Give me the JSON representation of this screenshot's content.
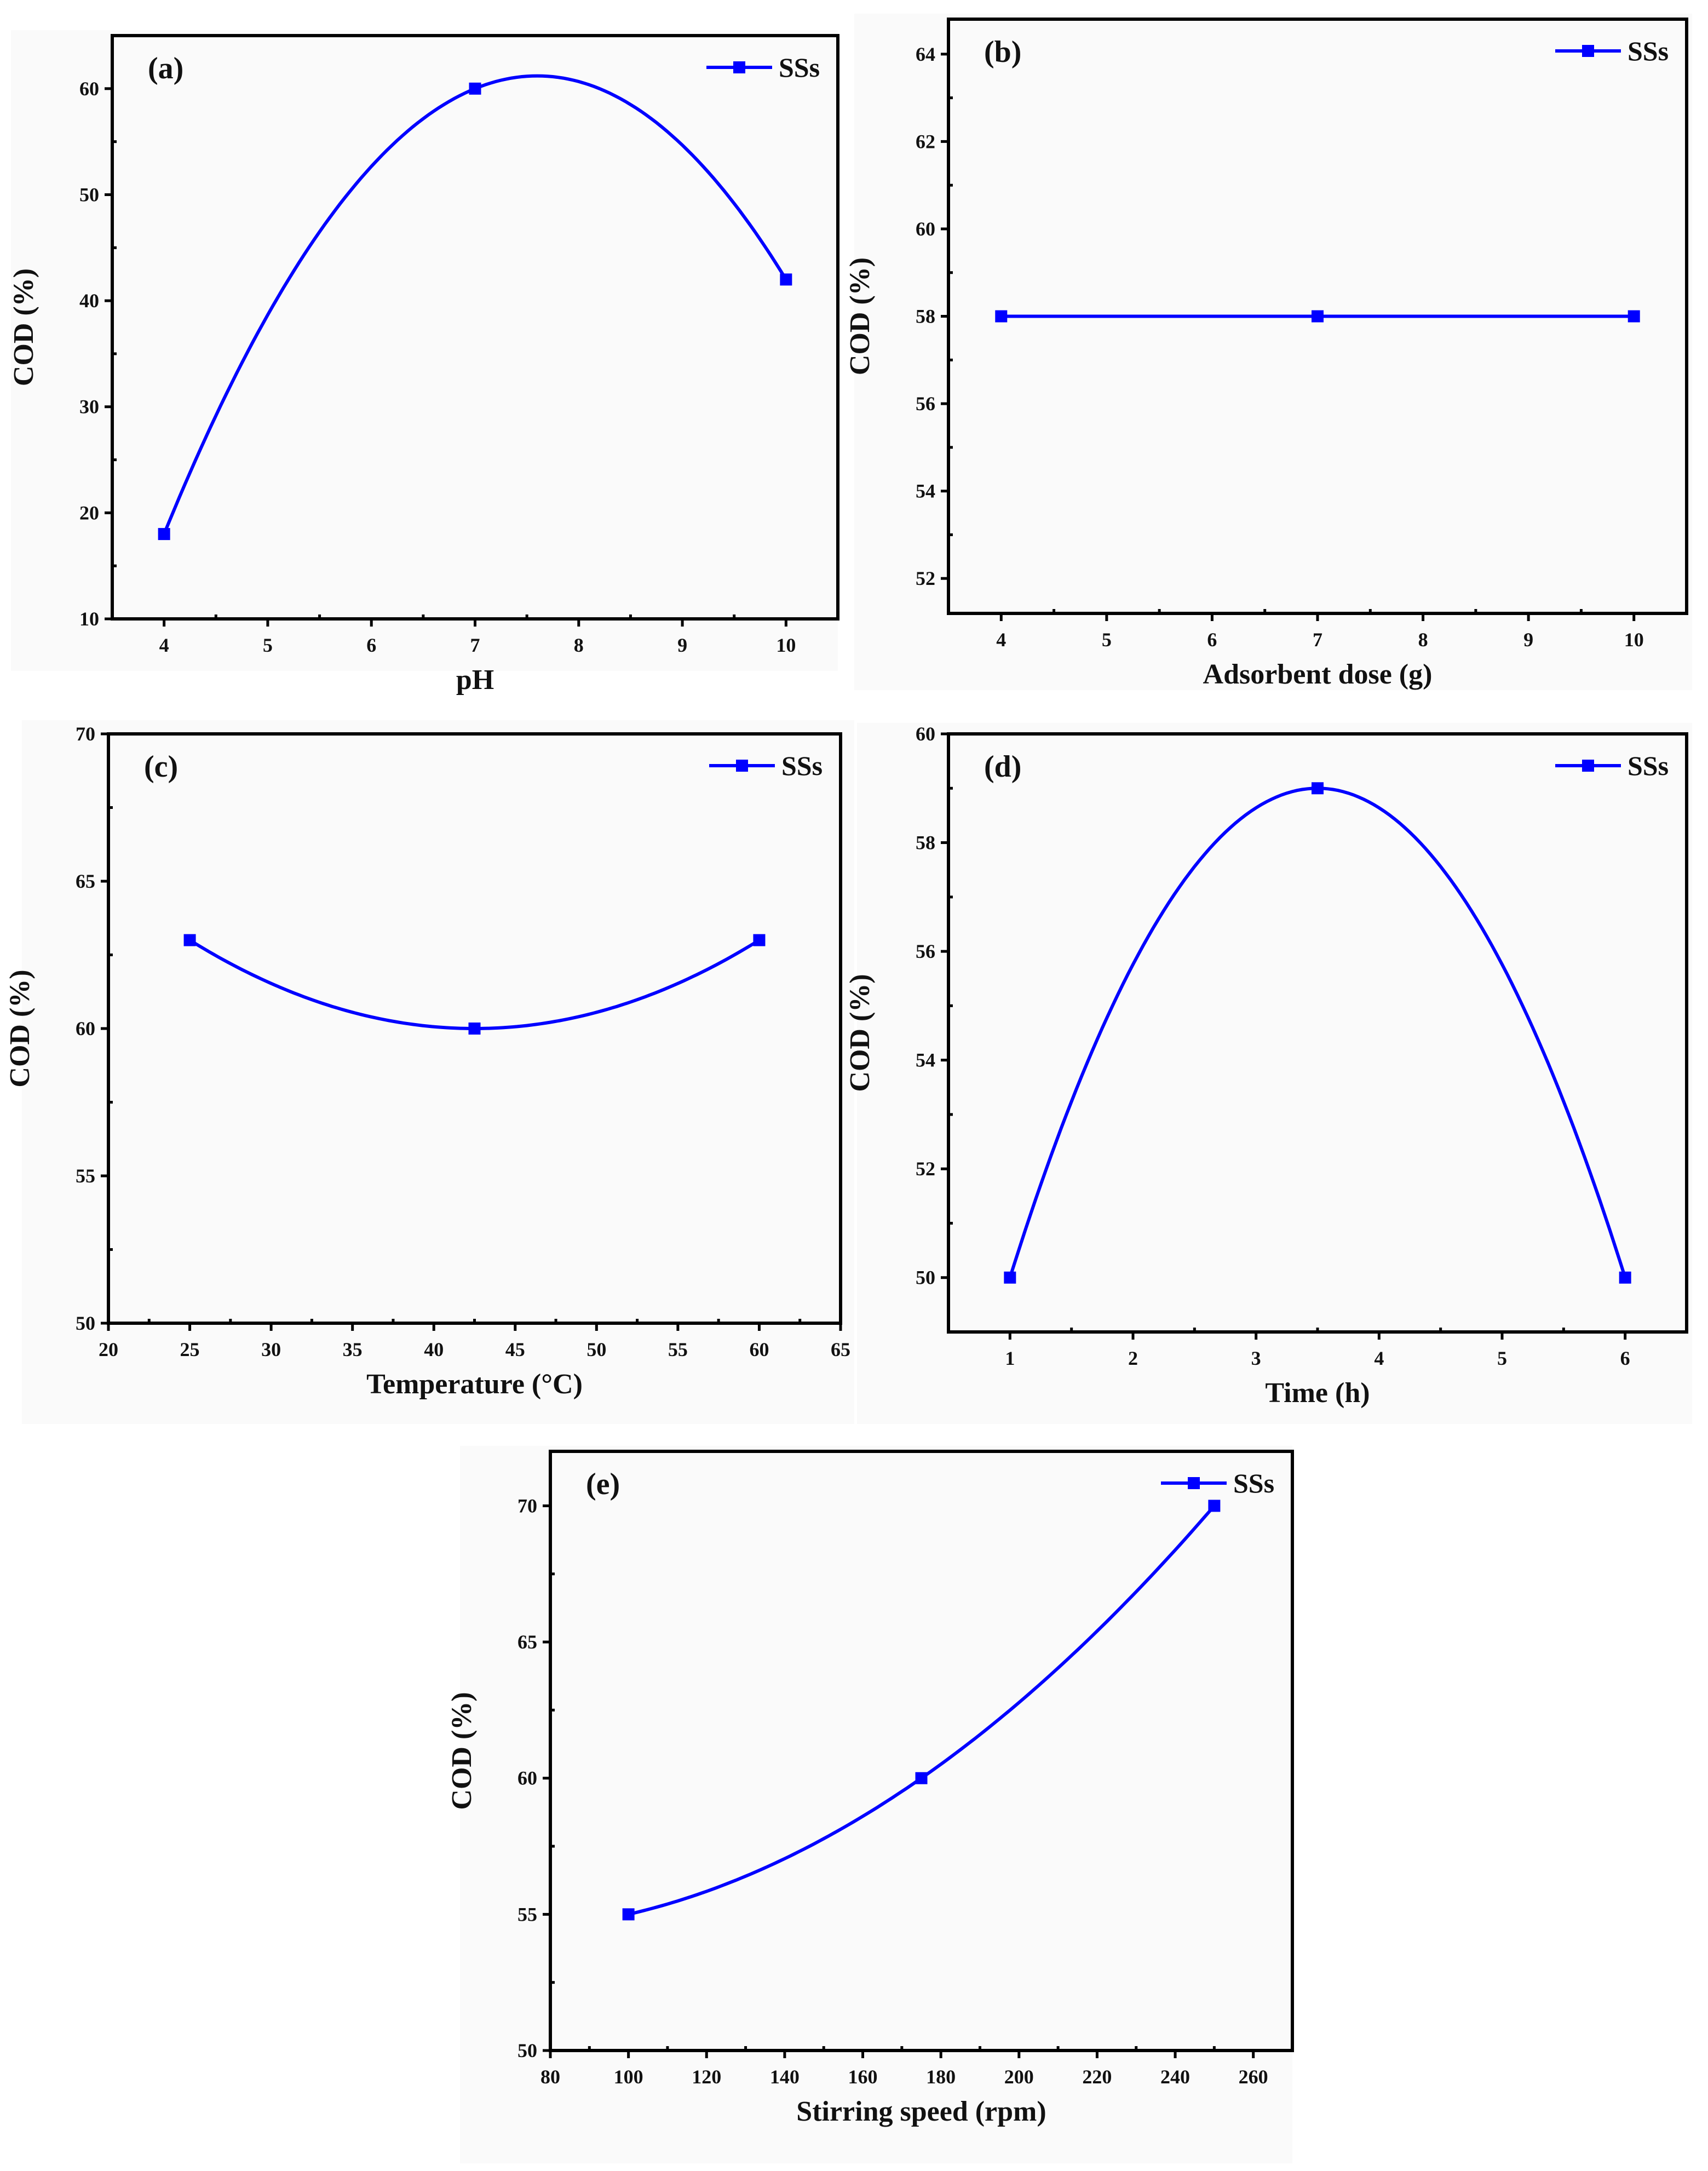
{
  "chart_data": [
    {
      "id": "a",
      "type": "line",
      "panel_label": "(a)",
      "xlabel": "pH",
      "ylabel": "COD (%)",
      "xlim": [
        3.5,
        10.5
      ],
      "ylim": [
        10,
        65
      ],
      "xticks": [
        4,
        5,
        6,
        7,
        8,
        9,
        10
      ],
      "yticks": [
        10,
        20,
        30,
        40,
        50,
        60
      ],
      "series": [
        {
          "name": "SSs",
          "color": "#0000ff",
          "marker": "square",
          "smooth": true,
          "x": [
            4,
            7,
            10
          ],
          "y": [
            18,
            60,
            42
          ]
        }
      ],
      "legend": "top-right"
    },
    {
      "id": "b",
      "type": "line",
      "panel_label": "(b)",
      "xlabel": "Adsorbent dose (g)",
      "ylabel": "COD (%)",
      "xlim": [
        3.5,
        10.5
      ],
      "ylim": [
        51.2,
        64.8
      ],
      "xticks": [
        4,
        5,
        6,
        7,
        8,
        9,
        10
      ],
      "yticks": [
        52,
        54,
        56,
        58,
        60,
        62,
        64
      ],
      "series": [
        {
          "name": "SSs",
          "color": "#0000ff",
          "marker": "square",
          "smooth": false,
          "x": [
            4,
            7,
            10
          ],
          "y": [
            58,
            58,
            58
          ]
        }
      ],
      "legend": "top-right"
    },
    {
      "id": "c",
      "type": "line",
      "panel_label": "(c)",
      "xlabel": "Temperature (°C)",
      "ylabel": "COD (%)",
      "xlim": [
        20,
        65
      ],
      "ylim": [
        50,
        70
      ],
      "xticks": [
        20,
        25,
        30,
        35,
        40,
        45,
        50,
        55,
        60,
        65
      ],
      "yticks": [
        50,
        55,
        60,
        65,
        70
      ],
      "series": [
        {
          "name": "SSs",
          "color": "#0000ff",
          "marker": "square",
          "smooth": true,
          "x": [
            25,
            42.5,
            60
          ],
          "y": [
            63,
            60,
            63
          ]
        }
      ],
      "legend": "top-right"
    },
    {
      "id": "d",
      "type": "line",
      "panel_label": "(d)",
      "xlabel": "Time (h)",
      "ylabel": "COD (%)",
      "xlim": [
        0.5,
        6.5
      ],
      "ylim": [
        49,
        60
      ],
      "xticks": [
        1,
        2,
        3,
        4,
        5,
        6
      ],
      "yticks": [
        50,
        52,
        54,
        56,
        58,
        60
      ],
      "series": [
        {
          "name": "SSs",
          "color": "#0000ff",
          "marker": "square",
          "smooth": true,
          "x": [
            1,
            3.5,
            6
          ],
          "y": [
            50,
            59,
            50
          ]
        }
      ],
      "legend": "top-right"
    },
    {
      "id": "e",
      "type": "line",
      "panel_label": "(e)",
      "xlabel": "Stirring speed (rpm)",
      "ylabel": "COD (%)",
      "xlim": [
        80,
        270
      ],
      "ylim": [
        50,
        72
      ],
      "xticks": [
        80,
        100,
        120,
        140,
        160,
        180,
        200,
        220,
        240,
        260
      ],
      "yticks": [
        50,
        55,
        60,
        65,
        70
      ],
      "series": [
        {
          "name": "SSs",
          "color": "#0000ff",
          "marker": "square",
          "smooth": true,
          "x": [
            100,
            175,
            250
          ],
          "y": [
            55,
            60,
            70
          ]
        }
      ],
      "legend": "top-right"
    }
  ]
}
